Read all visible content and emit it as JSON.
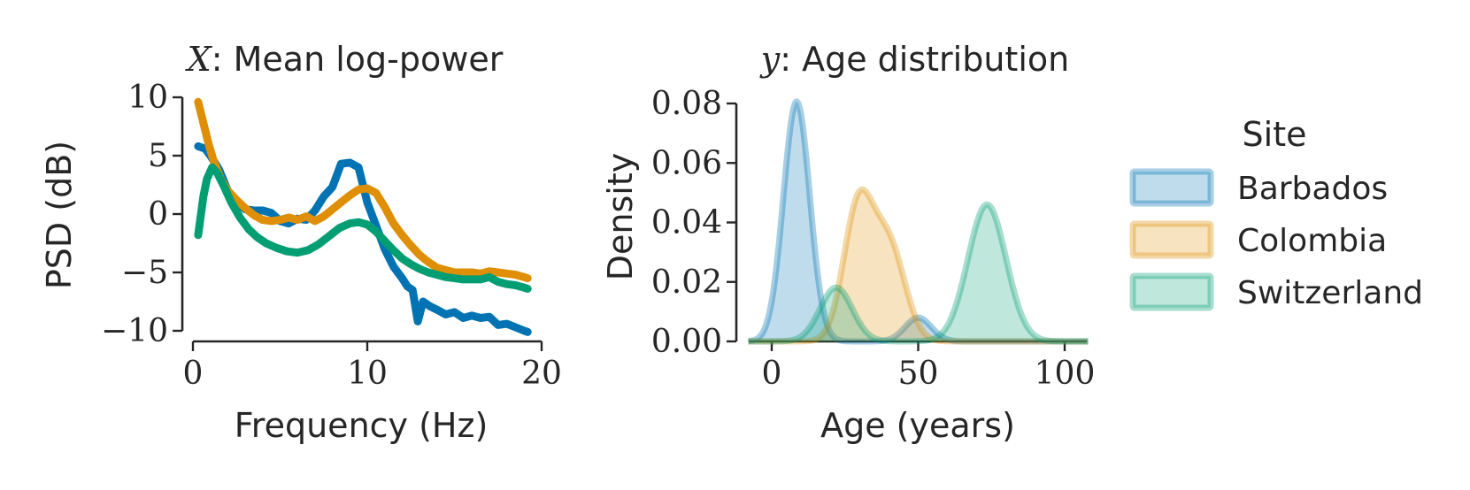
{
  "colors": {
    "Barbados": "#0173b2",
    "Colombia": "#de8f05",
    "Switzerland": "#029e73",
    "text": "#262626"
  },
  "chart_data": [
    {
      "type": "line",
      "title_var": "X",
      "title": ": Mean log-power",
      "xlabel": "Frequency (Hz)",
      "ylabel": "PSD (dB)",
      "xlim": [
        0,
        20
      ],
      "ylim": [
        -10,
        10
      ],
      "xticks": [
        0,
        10,
        20
      ],
      "xtick_labels": [
        "0",
        "10",
        "20"
      ],
      "yticks": [
        10,
        5,
        0,
        -5,
        -10
      ],
      "ytick_labels": [
        "10",
        "5",
        "0",
        "−5",
        "−10"
      ],
      "series": [
        {
          "name": "Barbados",
          "x": [
            0.3,
            0.7,
            1.0,
            1.5,
            2.0,
            2.5,
            3.0,
            3.5,
            4.0,
            4.5,
            5.0,
            5.5,
            6.0,
            6.5,
            7.0,
            7.5,
            8.0,
            8.5,
            9.0,
            9.5,
            10.0,
            10.5,
            11.0,
            11.5,
            12.0,
            12.3,
            12.6,
            12.9,
            13.2,
            13.6,
            14.0,
            14.5,
            15.0,
            15.5,
            16.0,
            16.5,
            17.0,
            17.5,
            18.0,
            18.5,
            19.0,
            19.2
          ],
          "values": [
            5.8,
            5.6,
            5.0,
            3.8,
            2.0,
            1.0,
            0.4,
            0.3,
            0.3,
            0.1,
            -0.6,
            -0.8,
            -0.4,
            -0.5,
            0.3,
            1.5,
            2.3,
            4.3,
            4.4,
            4.0,
            1.0,
            -1.0,
            -3.0,
            -4.5,
            -5.5,
            -6.2,
            -6.5,
            -9.2,
            -7.5,
            -7.9,
            -8.2,
            -8.6,
            -8.4,
            -8.9,
            -8.7,
            -8.9,
            -8.8,
            -9.5,
            -9.4,
            -9.7,
            -10.0,
            -10.1
          ]
        },
        {
          "name": "Colombia",
          "x": [
            0.3,
            0.6,
            0.9,
            1.2,
            1.6,
            2.0,
            2.5,
            3.0,
            3.5,
            4.0,
            4.5,
            5.0,
            5.5,
            6.0,
            6.5,
            7.0,
            7.5,
            8.0,
            8.5,
            9.0,
            9.5,
            10.0,
            10.5,
            11.0,
            11.5,
            12.0,
            12.5,
            13.0,
            13.5,
            14.0,
            14.5,
            15.0,
            15.5,
            16.0,
            16.5,
            17.0,
            17.5,
            18.0,
            18.5,
            19.0,
            19.2
          ],
          "values": [
            9.6,
            7.8,
            6.0,
            4.5,
            3.0,
            2.0,
            1.2,
            0.5,
            -0.1,
            -0.5,
            -0.6,
            -0.5,
            -0.3,
            -0.5,
            -0.2,
            -0.6,
            -0.2,
            0.4,
            1.0,
            1.6,
            2.1,
            2.2,
            1.8,
            0.6,
            -0.8,
            -1.8,
            -2.7,
            -3.5,
            -4.1,
            -4.6,
            -4.8,
            -5.0,
            -5.0,
            -5.0,
            -5.1,
            -4.9,
            -5.0,
            -5.1,
            -5.2,
            -5.4,
            -5.5
          ]
        },
        {
          "name": "Switzerland",
          "x": [
            0.3,
            0.6,
            0.8,
            1.1,
            1.4,
            1.8,
            2.2,
            2.7,
            3.2,
            3.7,
            4.2,
            4.8,
            5.4,
            6.0,
            6.6,
            7.2,
            7.8,
            8.4,
            9.0,
            9.5,
            10.0,
            10.5,
            11.0,
            11.5,
            12.0,
            12.5,
            13.0,
            13.5,
            14.0,
            14.5,
            15.0,
            15.5,
            16.0,
            16.5,
            17.0,
            17.5,
            18.0,
            18.5,
            19.0,
            19.2
          ],
          "values": [
            -1.8,
            1.5,
            3.0,
            4.0,
            3.5,
            2.3,
            1.0,
            -0.3,
            -1.3,
            -2.0,
            -2.5,
            -2.9,
            -3.2,
            -3.3,
            -3.1,
            -2.6,
            -1.9,
            -1.2,
            -0.8,
            -0.7,
            -0.9,
            -1.5,
            -2.3,
            -3.1,
            -3.8,
            -4.3,
            -4.7,
            -5.0,
            -5.2,
            -5.4,
            -5.5,
            -5.6,
            -5.6,
            -5.6,
            -5.4,
            -5.8,
            -6.0,
            -6.1,
            -6.3,
            -6.4
          ]
        }
      ]
    },
    {
      "type": "area",
      "title_var": "y",
      "title": ": Age distribution",
      "xlabel": "Age (years)",
      "ylabel": "Density",
      "xlim": [
        -8,
        108
      ],
      "ylim": [
        0,
        0.08
      ],
      "xticks": [
        0,
        50,
        100
      ],
      "xtick_labels": [
        "0",
        "50",
        "100"
      ],
      "yticks": [
        0.0,
        0.02,
        0.04,
        0.06,
        0.08
      ],
      "ytick_labels": [
        "0.00",
        "0.02",
        "0.04",
        "0.06",
        "0.08"
      ],
      "series": [
        {
          "name": "Barbados",
          "components": [
            {
              "mean": 8.5,
              "sd": 4.5,
              "weight": 0.91
            },
            {
              "mean": 50,
              "sd": 4.5,
              "weight": 0.09
            }
          ]
        },
        {
          "name": "Colombia",
          "components": [
            {
              "mean": 29.5,
              "sd": 5.0,
              "weight": 0.56
            },
            {
              "mean": 40,
              "sd": 5.5,
              "weight": 0.44
            }
          ]
        },
        {
          "name": "Switzerland",
          "components": [
            {
              "mean": 22,
              "sd": 5.5,
              "weight": 0.25
            },
            {
              "mean": 73.5,
              "sd": 6.5,
              "weight": 0.75
            }
          ]
        }
      ]
    }
  ],
  "legend": {
    "title": "Site",
    "entries": [
      "Barbados",
      "Colombia",
      "Switzerland"
    ]
  }
}
